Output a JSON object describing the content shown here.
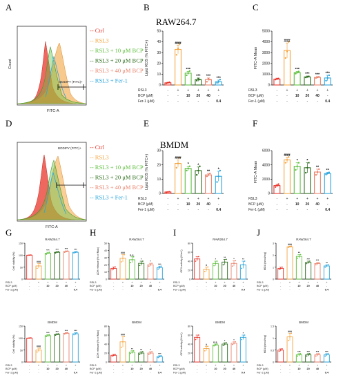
{
  "panel_letters": [
    "A",
    "B",
    "C",
    "D",
    "E",
    "F",
    "G",
    "H",
    "I",
    "J"
  ],
  "row_titles": {
    "raw": "RAW264.7",
    "bmdm": "BMDM"
  },
  "legend_items": [
    {
      "label": "Ctrl",
      "color": "#e8352b"
    },
    {
      "label": "RSL3",
      "color": "#f4a541"
    },
    {
      "label": "RSL3 + 10 μM BCP",
      "color": "#5dbf3c"
    },
    {
      "label": "RSL3 + 20 μM BCP",
      "color": "#2e6e1e"
    },
    {
      "label": "RSL3 + 40 μM BCP",
      "color": "#e9826b"
    },
    {
      "label": "RSL3 + Fer-1",
      "color": "#2aa5dc"
    }
  ],
  "gate_label": "BODIPY (FITC)+",
  "flow_axes": {
    "x": "FITC-A",
    "y": "Count"
  },
  "group_colors": [
    "#e8352b",
    "#f4a541",
    "#5dbf3c",
    "#2e6e1e",
    "#e9826b",
    "#2aa5dc"
  ],
  "table_rows": {
    "rsl3": {
      "label": "RSL3",
      "values": [
        "-",
        "+",
        "+",
        "+",
        "+",
        "+"
      ]
    },
    "bcp": {
      "label": "BCP (μM)",
      "values": [
        "-",
        "-",
        "10",
        "20",
        "40",
        "-"
      ]
    },
    "fer": {
      "label": "Fer-1 (μM)",
      "values": [
        "-",
        "-",
        "-",
        "-",
        "-",
        "0.4"
      ]
    }
  },
  "chart_data": [
    {
      "panel": "B",
      "type": "bar",
      "title": "RAW264.7",
      "ylabel": "Lipid ROS (% FITC+)",
      "ylim": [
        0,
        50
      ],
      "yticks": [
        0,
        10,
        20,
        30,
        40,
        50
      ],
      "values": [
        2,
        33,
        11,
        5,
        5,
        3
      ],
      "errors": [
        0.5,
        4,
        1.5,
        1.5,
        1.5,
        1.5
      ],
      "points": [
        [
          1.5,
          2,
          2.5
        ],
        [
          28,
          34,
          38
        ],
        [
          9,
          11,
          13
        ],
        [
          4,
          6,
          5
        ],
        [
          3,
          6,
          5
        ],
        [
          2,
          3,
          5
        ]
      ],
      "sig": [
        "",
        "###",
        "***",
        "***",
        "***",
        "***"
      ]
    },
    {
      "panel": "C",
      "type": "bar",
      "ylabel": "FITC-A Mean",
      "ylim": [
        0,
        5000
      ],
      "yticks": [
        0,
        1000,
        2000,
        3000,
        4000,
        5000
      ],
      "values": [
        550,
        3200,
        1150,
        750,
        700,
        650
      ],
      "errors": [
        80,
        700,
        100,
        80,
        80,
        250
      ],
      "points": [
        [
          500,
          550,
          600
        ],
        [
          2500,
          3100,
          4000
        ],
        [
          1050,
          1150,
          1250
        ],
        [
          700,
          750,
          800
        ],
        [
          650,
          700,
          750
        ],
        [
          400,
          650,
          900
        ]
      ],
      "sig": [
        "",
        "###",
        "***",
        "***",
        "***",
        "***"
      ]
    },
    {
      "panel": "E",
      "type": "bar",
      "title": "BMDM",
      "ylabel": "Lipid ROS (% FITC+)",
      "ylim": [
        0,
        30
      ],
      "yticks": [
        0,
        10,
        20,
        30
      ],
      "values": [
        1,
        21,
        17.5,
        16,
        13,
        12
      ],
      "errors": [
        0.2,
        2.5,
        1.5,
        2.5,
        1,
        3.5
      ],
      "points": [
        [
          0.8,
          1,
          1.2
        ],
        [
          18,
          21,
          25
        ],
        [
          16,
          17.5,
          19
        ],
        [
          13,
          16,
          19
        ],
        [
          12,
          13,
          14
        ],
        [
          8,
          12,
          16
        ]
      ],
      "sig": [
        "",
        "###",
        "*",
        "*",
        "**",
        "*"
      ]
    },
    {
      "panel": "F",
      "type": "bar",
      "ylabel": "FITC-A Mean",
      "ylim": [
        0,
        6000
      ],
      "yticks": [
        0,
        2000,
        4000,
        6000
      ],
      "values": [
        1100,
        4700,
        3800,
        3600,
        3000,
        2800
      ],
      "errors": [
        200,
        400,
        500,
        700,
        400,
        150
      ],
      "points": [
        [
          900,
          1100,
          1300
        ],
        [
          4300,
          4700,
          5100
        ],
        [
          3300,
          3800,
          4300
        ],
        [
          2900,
          3600,
          4300
        ],
        [
          2600,
          3000,
          3400
        ],
        [
          2650,
          2800,
          2950
        ]
      ],
      "sig": [
        "",
        "###",
        "*",
        "*",
        "**",
        "**"
      ]
    },
    {
      "panel": "G1",
      "type": "bar",
      "title": "RAW264.7",
      "ylabel": "Cell viability (%)",
      "ylim": [
        0,
        150
      ],
      "yticks": [
        0,
        50,
        100,
        150
      ],
      "values": [
        100,
        55,
        108,
        112,
        115,
        112
      ],
      "errors": [
        1,
        10,
        4,
        3,
        3,
        3
      ],
      "points": [
        [
          99,
          100,
          101
        ],
        [
          45,
          55,
          65
        ],
        [
          104,
          108,
          112
        ],
        [
          109,
          112,
          115
        ],
        [
          112,
          115,
          118
        ],
        [
          109,
          112,
          115
        ]
      ],
      "sig": [
        "",
        "###",
        "***",
        "***",
        "***",
        "***"
      ]
    },
    {
      "panel": "H1",
      "type": "bar",
      "title": "RAW264.7",
      "ylabel": "LDH release (% of Max)",
      "ylim": [
        0,
        50
      ],
      "yticks": [
        0,
        10,
        20,
        30,
        40,
        50
      ],
      "values": [
        15,
        29,
        27,
        22,
        20,
        16
      ],
      "errors": [
        2,
        5,
        4,
        3,
        2,
        2
      ],
      "points": [
        [
          13,
          15,
          17
        ],
        [
          24,
          29,
          34
        ],
        [
          23,
          27,
          31
        ],
        [
          19,
          22,
          25
        ],
        [
          18,
          20,
          22
        ],
        [
          14,
          16,
          18
        ]
      ],
      "sig": [
        "",
        "###",
        "n.s.",
        "*",
        "*",
        "***"
      ]
    },
    {
      "panel": "I1",
      "type": "bar",
      "title": "RAW264.7",
      "ylabel": "GPX activity (U/mL)",
      "ylim": [
        0,
        80
      ],
      "yticks": [
        0,
        20,
        40,
        60,
        80
      ],
      "values": [
        45,
        22,
        35,
        38,
        35,
        32
      ],
      "errors": [
        5,
        5,
        5,
        6,
        6,
        8
      ],
      "points": [
        [
          40,
          45,
          50
        ],
        [
          17,
          22,
          27
        ],
        [
          30,
          35,
          40
        ],
        [
          32,
          38,
          44
        ],
        [
          29,
          35,
          41
        ],
        [
          24,
          32,
          40
        ]
      ],
      "sig": [
        "",
        "#",
        "*",
        "**",
        "*",
        "**"
      ]
    },
    {
      "panel": "J1",
      "type": "bar",
      "title": "RAW264.7",
      "ylabel": "MDA (nmol/mg)",
      "ylim": [
        0,
        3
      ],
      "yticks": [
        0,
        1,
        2,
        3
      ],
      "values": [
        0.9,
        2.7,
        1.9,
        1.4,
        1.3,
        1.1
      ],
      "errors": [
        0.1,
        0.05,
        0.15,
        0.1,
        0.1,
        0.1
      ],
      "points": [
        [
          0.8,
          0.9,
          1.0
        ],
        [
          2.65,
          2.7,
          2.75
        ],
        [
          1.75,
          1.9,
          2.05
        ],
        [
          1.3,
          1.4,
          1.5
        ],
        [
          1.2,
          1.3,
          1.4
        ],
        [
          1.0,
          1.1,
          1.2
        ]
      ],
      "sig": [
        "",
        "###",
        "**",
        "***",
        "***",
        "**"
      ]
    },
    {
      "panel": "G2",
      "type": "bar",
      "title": "BMDM",
      "ylabel": "Cell viability (%)",
      "ylim": [
        0,
        150
      ],
      "yticks": [
        0,
        50,
        100,
        150
      ],
      "values": [
        100,
        50,
        110,
        115,
        120,
        118
      ],
      "errors": [
        1,
        8,
        4,
        3,
        3,
        4
      ],
      "points": [
        [
          99,
          100,
          101
        ],
        [
          42,
          50,
          58
        ],
        [
          106,
          110,
          114
        ],
        [
          112,
          115,
          118
        ],
        [
          117,
          120,
          123
        ],
        [
          114,
          118,
          122
        ]
      ],
      "sig": [
        "",
        "###",
        "***",
        "***",
        "***",
        "***"
      ]
    },
    {
      "panel": "H2",
      "type": "bar",
      "title": "BMDM",
      "ylabel": "LDH release (% of Max)",
      "ylim": [
        0,
        80
      ],
      "yticks": [
        0,
        20,
        40,
        60,
        80
      ],
      "values": [
        15,
        45,
        22,
        20,
        20,
        12
      ],
      "errors": [
        2,
        12,
        3,
        3,
        3,
        2
      ],
      "points": [
        [
          13,
          15,
          17
        ],
        [
          33,
          45,
          57
        ],
        [
          19,
          22,
          25
        ],
        [
          17,
          20,
          23
        ],
        [
          17,
          20,
          23
        ],
        [
          10,
          12,
          14
        ]
      ],
      "sig": [
        "",
        "###",
        "**",
        "**",
        "*",
        "***"
      ]
    },
    {
      "panel": "I2",
      "type": "bar",
      "title": "BMDM",
      "ylabel": "GPX activity (U/mL)",
      "ylim": [
        0,
        80
      ],
      "yticks": [
        0,
        20,
        40,
        60,
        80
      ],
      "values": [
        55,
        30,
        38,
        40,
        42,
        55
      ],
      "errors": [
        5,
        5,
        2,
        3,
        3,
        5
      ],
      "points": [
        [
          50,
          55,
          60
        ],
        [
          25,
          30,
          35
        ],
        [
          36,
          38,
          40
        ],
        [
          37,
          40,
          43
        ],
        [
          39,
          42,
          45
        ],
        [
          50,
          55,
          60
        ]
      ],
      "sig": [
        "",
        "#",
        "n.s.",
        "*",
        "*",
        "*"
      ]
    },
    {
      "panel": "J2",
      "type": "bar",
      "title": "BMDM",
      "ylabel": "MDA (nmol/mg)",
      "ylim": [
        0,
        1.5
      ],
      "yticks": [
        0,
        0.5,
        1.0,
        1.5
      ],
      "values": [
        0.5,
        1.05,
        0.3,
        0.3,
        0.3,
        0.3
      ],
      "errors": [
        0.05,
        0.15,
        0.05,
        0.05,
        0.05,
        0.05
      ],
      "points": [
        [
          0.45,
          0.5,
          0.55
        ],
        [
          0.9,
          1.05,
          1.2
        ],
        [
          0.25,
          0.3,
          0.35
        ],
        [
          0.25,
          0.3,
          0.35
        ],
        [
          0.25,
          0.3,
          0.35
        ],
        [
          0.25,
          0.3,
          0.35
        ]
      ],
      "sig": [
        "",
        "###",
        "***",
        "***",
        "***",
        "***"
      ]
    }
  ]
}
